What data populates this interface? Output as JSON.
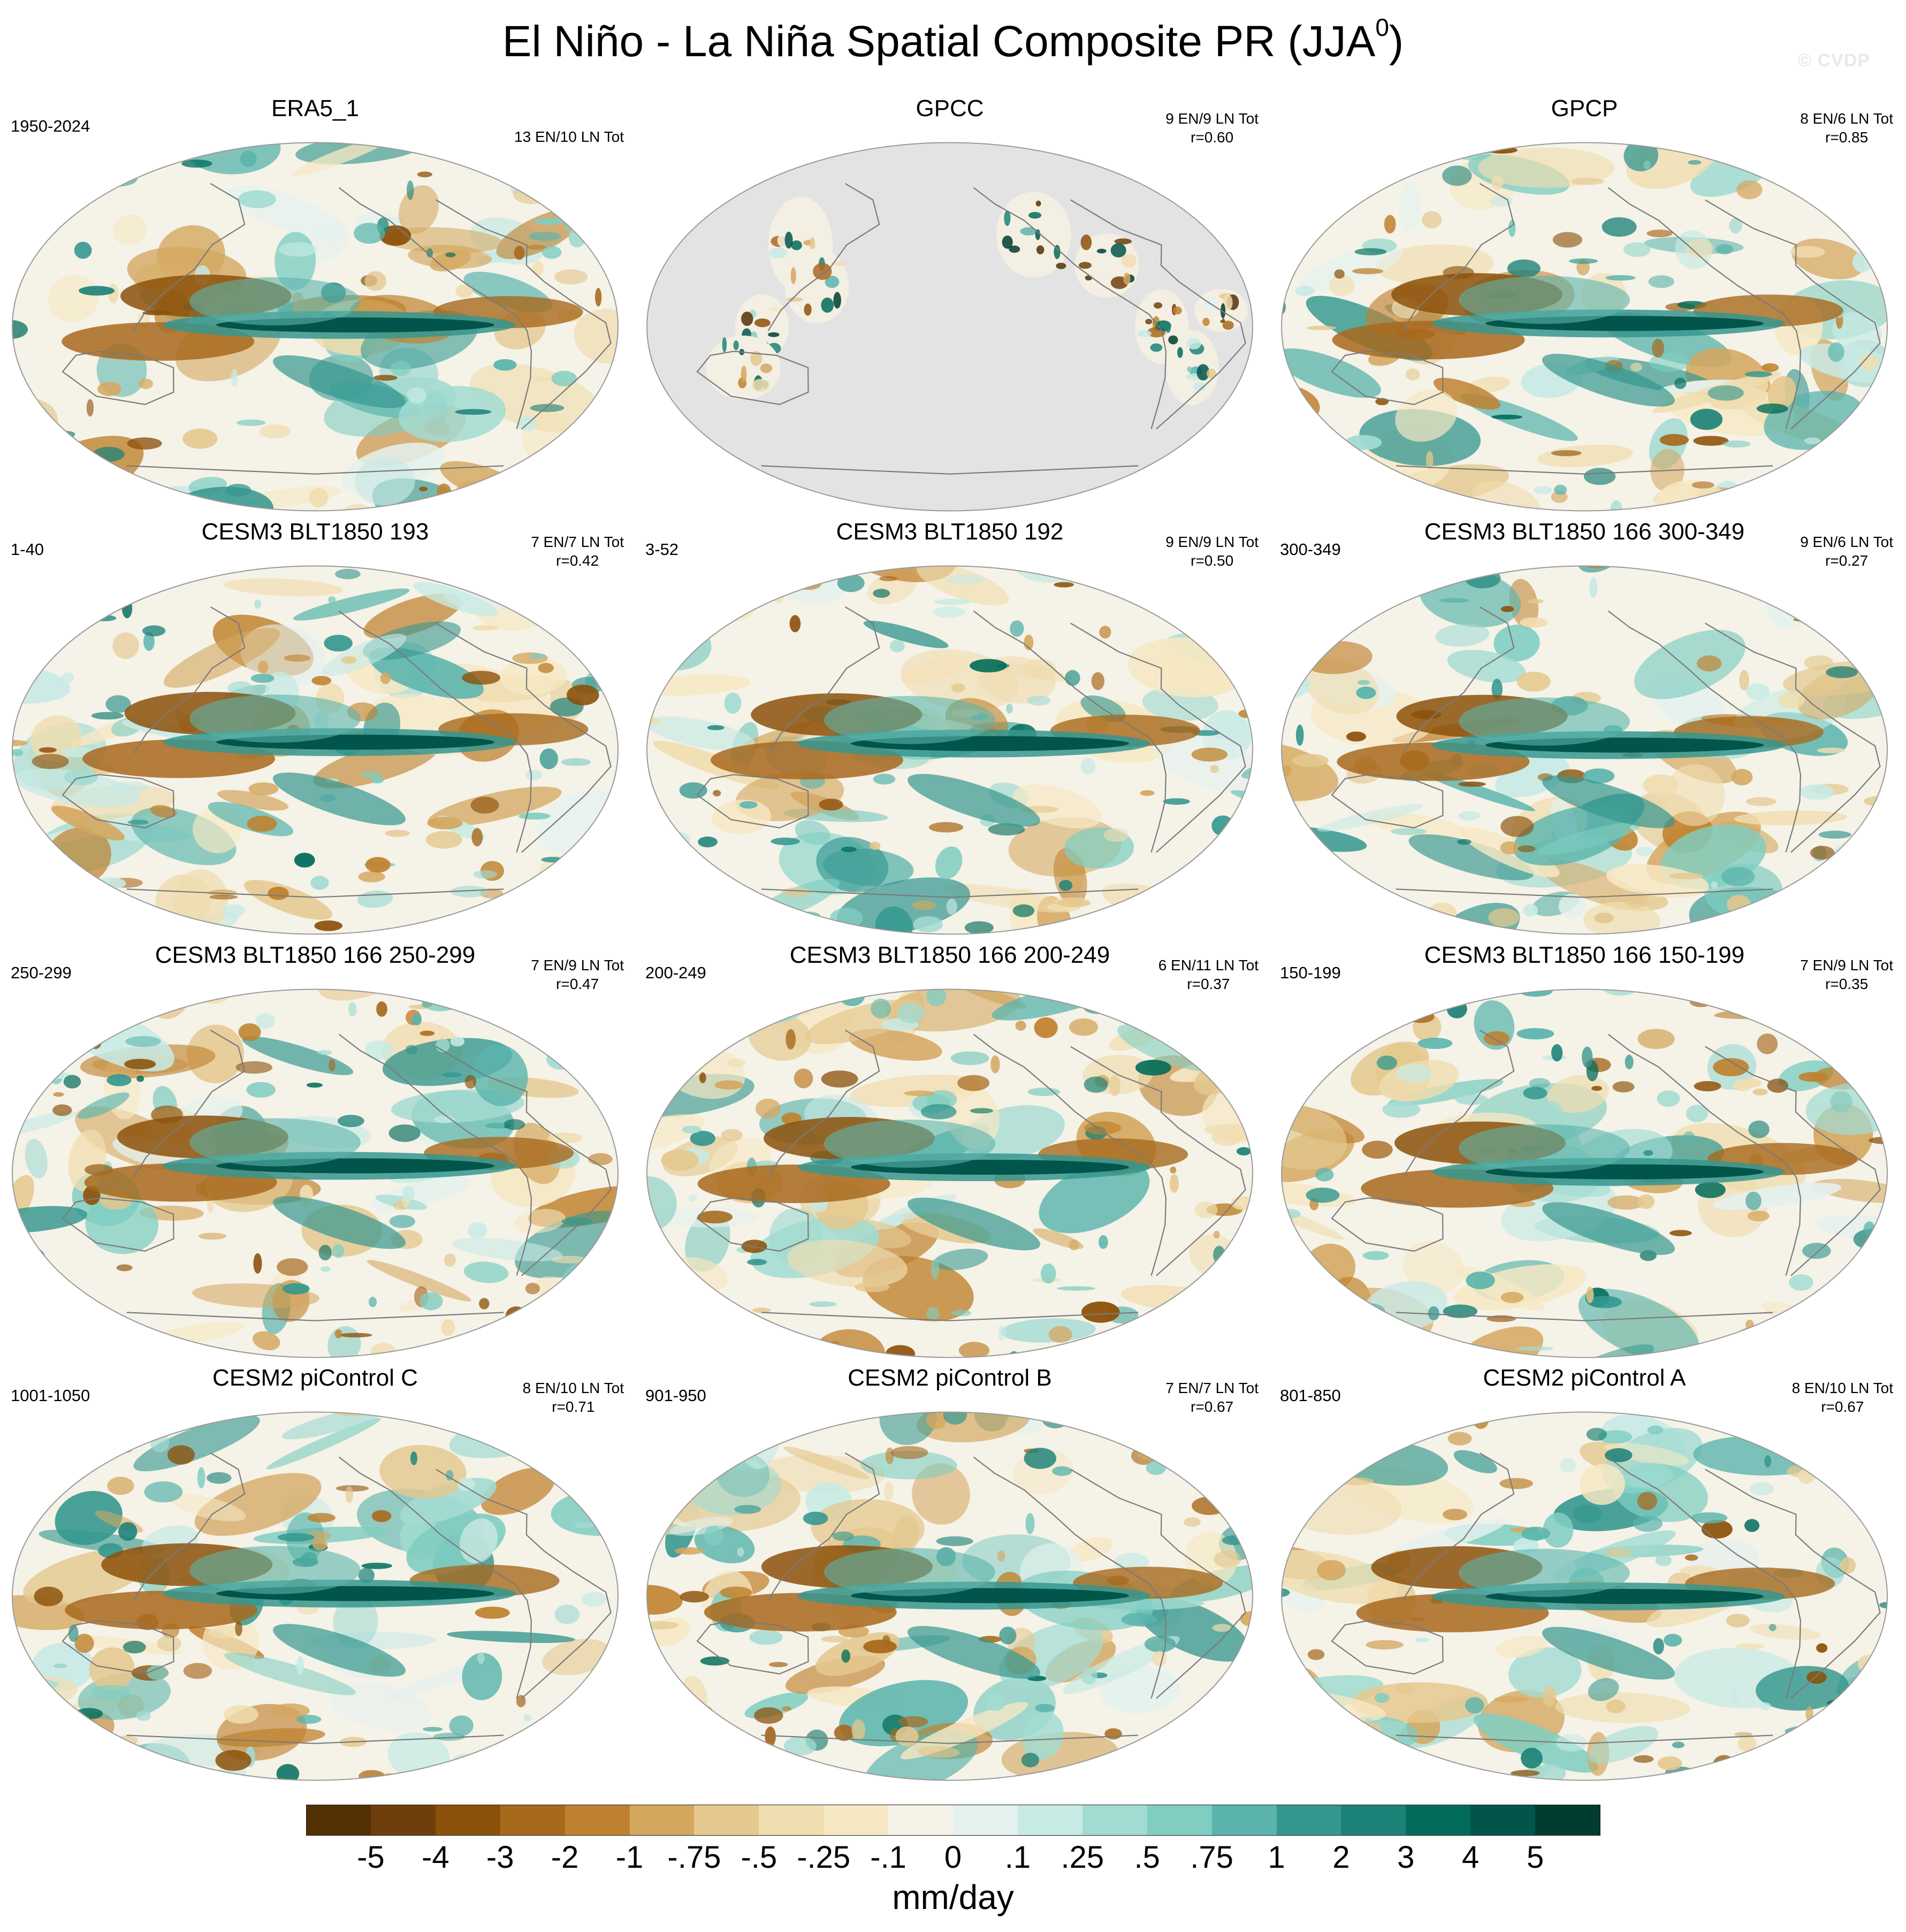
{
  "title": {
    "main": "El Niño - La Niña Spatial Composite PR (JJA",
    "superscript": "0",
    "close": ")"
  },
  "watermark": "© CVDP",
  "panels": [
    {
      "title": "ERA5_1",
      "range": "1950-2024",
      "stats": [
        "13 EN/10 LN Tot"
      ]
    },
    {
      "title": "GPCC",
      "range": "",
      "stats": [
        "9 EN/9 LN Tot",
        "r=0.60"
      ]
    },
    {
      "title": "GPCP",
      "range": "",
      "stats": [
        "8 EN/6 LN Tot",
        "r=0.85"
      ]
    },
    {
      "title": "CESM3 BLT1850 193",
      "range": "1-40",
      "stats": [
        "7 EN/7 LN Tot",
        "r=0.42"
      ]
    },
    {
      "title": "CESM3 BLT1850 192",
      "range": "3-52",
      "stats": [
        "9 EN/9 LN Tot",
        "r=0.50"
      ]
    },
    {
      "title": "CESM3 BLT1850 166 300-349",
      "range": "300-349",
      "stats": [
        "9 EN/6 LN Tot",
        "r=0.27"
      ]
    },
    {
      "title": "CESM3 BLT1850 166 250-299",
      "range": "250-299",
      "stats": [
        "7 EN/9 LN Tot",
        "r=0.47"
      ]
    },
    {
      "title": "CESM3 BLT1850 166 200-249",
      "range": "200-249",
      "stats": [
        "6 EN/11 LN Tot",
        "r=0.37"
      ]
    },
    {
      "title": "CESM3 BLT1850 166 150-199",
      "range": "150-199",
      "stats": [
        "7 EN/9 LN Tot",
        "r=0.35"
      ]
    },
    {
      "title": "CESM2 piControl C",
      "range": "1001-1050",
      "stats": [
        "8 EN/10 LN Tot",
        "r=0.71"
      ]
    },
    {
      "title": "CESM2 piControl B",
      "range": "901-950",
      "stats": [
        "7 EN/7 LN Tot",
        "r=0.67"
      ]
    },
    {
      "title": "CESM2 piControl A",
      "range": "801-850",
      "stats": [
        "8 EN/10 LN Tot",
        "r=0.67"
      ]
    }
  ],
  "colorbar": {
    "units": "mm/day",
    "labels": [
      "-5",
      "-4",
      "-3",
      "-2",
      "-1",
      "-.75",
      "-.5",
      "-.25",
      "-.1",
      "0",
      ".1",
      ".25",
      ".5",
      ".75",
      "1",
      "2",
      "3",
      "4",
      "5"
    ],
    "colors": [
      "#543005",
      "#6e3f0b",
      "#8c510a",
      "#a8691d",
      "#bf812d",
      "#d4a75f",
      "#e4c88e",
      "#f0ddb0",
      "#f6e8c3",
      "#f5f2e8",
      "#e4f1ee",
      "#c7eae5",
      "#a2dbd2",
      "#80cdc1",
      "#5ab4ac",
      "#35978f",
      "#1d8278",
      "#016c59",
      "#01554a",
      "#003c30"
    ]
  }
}
